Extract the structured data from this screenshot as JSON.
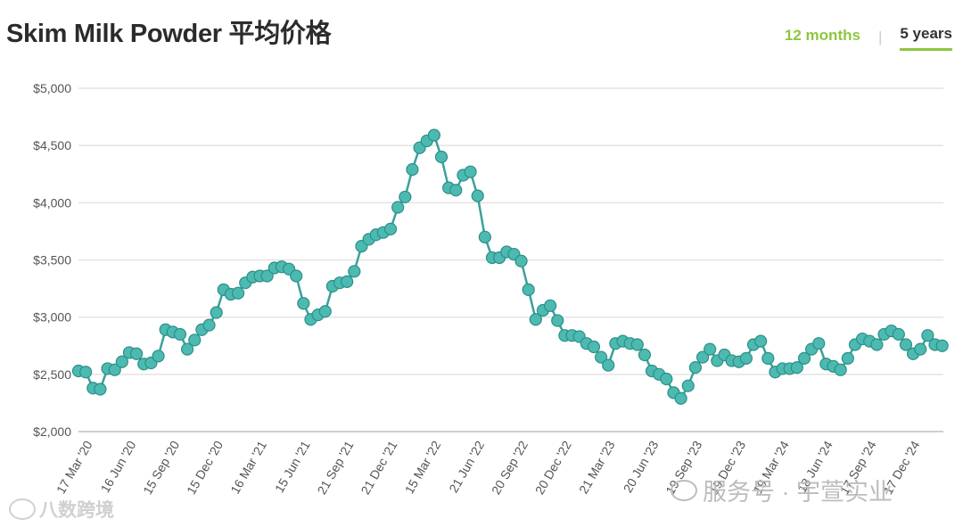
{
  "header": {
    "title": "Skim Milk Powder 平均价格",
    "tab_12_months": "12 months",
    "tab_separator": "|",
    "tab_5_years": "5 years",
    "active_tab": "5 years"
  },
  "colors": {
    "line": "#3aa19a",
    "marker_fill": "#4cbab1",
    "marker_stroke": "#2c8f88",
    "accent": "#8dc63f",
    "grid": "#e3e3e3"
  },
  "watermarks": {
    "left": "八数跨境",
    "right": "服务号 · 宇萱实业"
  },
  "chart_data": {
    "type": "line",
    "title": "",
    "xlabel": "",
    "ylabel": "",
    "ylim": [
      2000,
      5000
    ],
    "yticks": [
      2000,
      2500,
      3000,
      3500,
      4000,
      4500,
      5000
    ],
    "ytick_labels": [
      "$2,000",
      "$2,500",
      "$3,000",
      "$3,500",
      "$4,000",
      "$4,500",
      "$5,000"
    ],
    "xtick_labels": [
      "17 Mar '20",
      "16 Jun '20",
      "15 Sep '20",
      "15 Dec '20",
      "16 Mar '21",
      "15 Jun '21",
      "21 Sep '21",
      "21 Dec '21",
      "15 Mar '22",
      "21 Jun '22",
      "20 Sep '22",
      "20 Dec '22",
      "21 Mar '23",
      "20 Jun '23",
      "19 Sep '23",
      "19 Dec '23",
      "19 Mar '24",
      "18 Jun '24",
      "17 Sep '24",
      "17 Dec '24"
    ],
    "xtick_index": [
      0,
      6,
      12,
      18,
      24,
      30,
      36,
      42,
      48,
      54,
      60,
      66,
      72,
      78,
      84,
      90,
      96,
      102,
      108,
      114
    ],
    "grid": true,
    "legend": "none",
    "series": [
      {
        "values": [
          2530,
          2520,
          2380,
          2370,
          2550,
          2540,
          2610,
          2690,
          2680,
          2590,
          2600,
          2660,
          2890,
          2870,
          2850,
          2720,
          2800,
          2890,
          2930,
          3040,
          3240,
          3200,
          3210,
          3300,
          3350,
          3360,
          3360,
          3430,
          3440,
          3420,
          3360,
          3120,
          2980,
          3020,
          3050,
          3270,
          3300,
          3310,
          3400,
          3620,
          3680,
          3720,
          3740,
          3770,
          3960,
          4050,
          4290,
          4480,
          4540,
          4590,
          4400,
          4130,
          4110,
          4240,
          4270,
          4060,
          3700,
          3520,
          3520,
          3570,
          3550,
          3490,
          3240,
          2980,
          3060,
          3100,
          2970,
          2840,
          2840,
          2830,
          2770,
          2740,
          2650,
          2580,
          2770,
          2790,
          2770,
          2760,
          2670,
          2530,
          2500,
          2460,
          2340,
          2290,
          2400,
          2560,
          2650,
          2720,
          2620,
          2670,
          2620,
          2610,
          2640,
          2760,
          2790,
          2640,
          2520,
          2550,
          2550,
          2560,
          2640,
          2720,
          2770,
          2590,
          2570,
          2540,
          2640,
          2760,
          2810,
          2790,
          2760,
          2850,
          2880,
          2850,
          2760,
          2680,
          2720,
          2840,
          2760,
          2750
        ]
      }
    ]
  }
}
